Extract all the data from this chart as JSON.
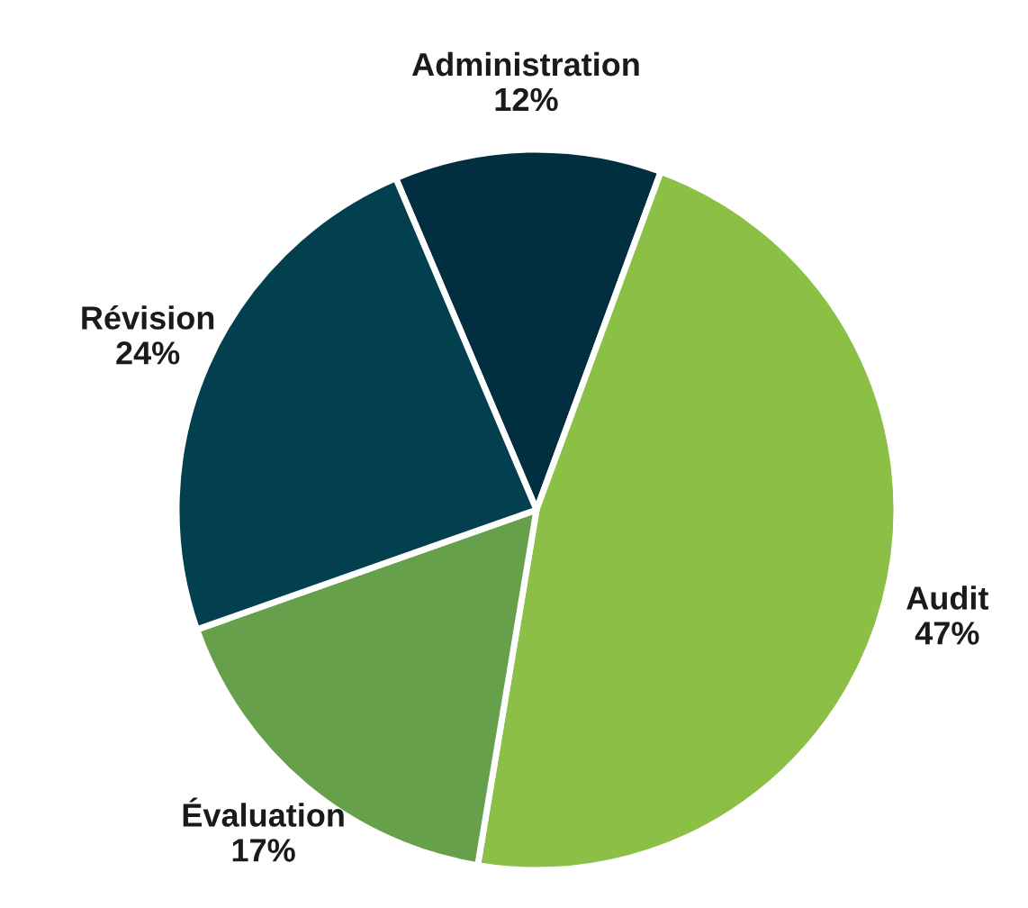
{
  "chart_data": {
    "type": "pie",
    "categories": [
      "Administration",
      "Audit",
      "Évaluation",
      "Révision"
    ],
    "values": [
      12,
      47,
      17,
      24
    ],
    "value_labels": [
      "12%",
      "47%",
      "17%",
      "24%"
    ],
    "colors": [
      "#022f3f",
      "#8bbf45",
      "#66a04b",
      "#03404f"
    ]
  }
}
